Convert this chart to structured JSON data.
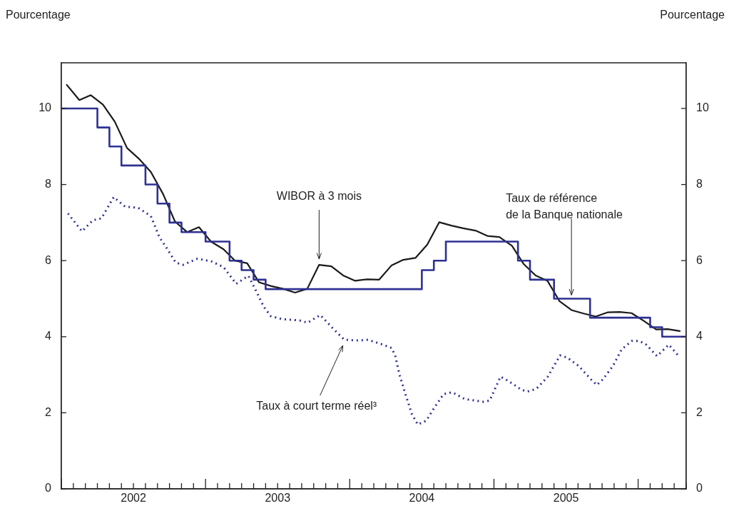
{
  "chart_data": {
    "type": "line",
    "ylabel": "Pourcentage",
    "y2label": "Pourcentage",
    "legend": false,
    "grid": false,
    "marker": "none",
    "xlim": [
      "2002-01-01",
      "2006-05-01"
    ],
    "ylim": [
      0,
      11.2
    ],
    "yticks": [
      0,
      2,
      4,
      6,
      8,
      10
    ],
    "y2lim": [
      0,
      11.2
    ],
    "y2ticks": [
      0,
      2,
      4,
      6,
      8,
      10
    ],
    "xticks": [
      {
        "value": "2002-01-01",
        "label": null
      },
      {
        "value": "2002-02-01",
        "label": null
      },
      {
        "value": "2002-03-01",
        "label": null
      },
      {
        "value": "2002-04-01",
        "label": null
      },
      {
        "value": "2002-05-01",
        "label": null
      },
      {
        "value": "2002-06-01",
        "label": null
      },
      {
        "value": "2002-07-01",
        "label": "2002"
      },
      {
        "value": "2002-08-01",
        "label": null
      },
      {
        "value": "2002-09-01",
        "label": null
      },
      {
        "value": "2002-10-01",
        "label": null
      },
      {
        "value": "2002-11-01",
        "label": null
      },
      {
        "value": "2002-12-01",
        "label": null
      },
      {
        "value": "2003-01-01",
        "label": null
      },
      {
        "value": "2003-02-01",
        "label": null
      },
      {
        "value": "2003-03-01",
        "label": null
      },
      {
        "value": "2003-04-01",
        "label": null
      },
      {
        "value": "2003-05-01",
        "label": null
      },
      {
        "value": "2003-06-01",
        "label": null
      },
      {
        "value": "2003-07-01",
        "label": "2003"
      },
      {
        "value": "2003-08-01",
        "label": null
      },
      {
        "value": "2003-09-01",
        "label": null
      },
      {
        "value": "2003-10-01",
        "label": null
      },
      {
        "value": "2003-11-01",
        "label": null
      },
      {
        "value": "2003-12-01",
        "label": null
      },
      {
        "value": "2004-01-01",
        "label": null
      },
      {
        "value": "2004-02-01",
        "label": null
      },
      {
        "value": "2004-03-01",
        "label": null
      },
      {
        "value": "2004-04-01",
        "label": null
      },
      {
        "value": "2004-05-01",
        "label": null
      },
      {
        "value": "2004-06-01",
        "label": null
      },
      {
        "value": "2004-07-01",
        "label": "2004"
      },
      {
        "value": "2004-08-01",
        "label": null
      },
      {
        "value": "2004-09-01",
        "label": null
      },
      {
        "value": "2004-10-01",
        "label": null
      },
      {
        "value": "2004-11-01",
        "label": null
      },
      {
        "value": "2004-12-01",
        "label": null
      },
      {
        "value": "2005-01-01",
        "label": null
      },
      {
        "value": "2005-02-01",
        "label": null
      },
      {
        "value": "2005-03-01",
        "label": null
      },
      {
        "value": "2005-04-01",
        "label": null
      },
      {
        "value": "2005-05-01",
        "label": null
      },
      {
        "value": "2005-06-01",
        "label": null
      },
      {
        "value": "2005-07-01",
        "label": "2005"
      },
      {
        "value": "2005-08-01",
        "label": null
      },
      {
        "value": "2005-09-01",
        "label": null
      },
      {
        "value": "2005-10-01",
        "label": null
      },
      {
        "value": "2005-11-01",
        "label": null
      },
      {
        "value": "2005-12-01",
        "label": null
      },
      {
        "value": "2006-01-01",
        "label": null
      },
      {
        "value": "2006-02-01",
        "label": null
      },
      {
        "value": "2006-03-01",
        "label": null
      },
      {
        "value": "2006-04-01",
        "label": null
      },
      {
        "value": "2006-05-01",
        "label": null
      }
    ],
    "series": [
      {
        "type": "step",
        "color": "#2e3192",
        "x": [
          "2002-01-01",
          "2002-04-01",
          "2002-05-01",
          "2002-06-01",
          "2002-08-01",
          "2002-09-01",
          "2002-10-01",
          "2002-11-01",
          "2003-01-01",
          "2003-03-01",
          "2003-04-01",
          "2003-05-01",
          "2003-06-01",
          "2004-07-01",
          "2004-08-01",
          "2004-09-01",
          "2005-03-01",
          "2005-04-01",
          "2005-06-01",
          "2005-09-01",
          "2006-02-01",
          "2006-03-01",
          "2006-05-01"
        ],
        "values": [
          10.0,
          9.5,
          9.0,
          8.5,
          8.0,
          7.5,
          7.0,
          6.75,
          6.5,
          6.0,
          5.75,
          5.5,
          5.25,
          5.75,
          6.0,
          6.5,
          6.0,
          5.5,
          5.0,
          4.5,
          4.25,
          4.0,
          4.0
        ]
      },
      {
        "type": "line",
        "color": "#1a1a1a",
        "x": [
          "2002-01-15",
          "2002-02-15",
          "2002-03-15",
          "2002-04-15",
          "2002-05-15",
          "2002-06-15",
          "2002-07-15",
          "2002-08-15",
          "2002-09-15",
          "2002-10-15",
          "2002-11-15",
          "2002-12-15",
          "2003-01-15",
          "2003-02-15",
          "2003-03-15",
          "2003-04-15",
          "2003-05-15",
          "2003-06-15",
          "2003-07-15",
          "2003-08-15",
          "2003-09-15",
          "2003-10-15",
          "2003-11-15",
          "2003-12-15",
          "2004-01-15",
          "2004-02-15",
          "2004-03-15",
          "2004-04-15",
          "2004-05-15",
          "2004-06-15",
          "2004-07-15",
          "2004-08-15",
          "2004-09-15",
          "2004-10-15",
          "2004-11-15",
          "2004-12-15",
          "2005-01-15",
          "2005-02-15",
          "2005-03-15",
          "2005-04-15",
          "2005-05-15",
          "2005-06-15",
          "2005-07-15",
          "2005-08-15",
          "2005-09-15",
          "2005-10-15",
          "2005-11-15",
          "2005-12-15",
          "2006-01-15",
          "2006-02-15",
          "2006-03-15",
          "2006-04-15"
        ],
        "values": [
          10.62,
          10.22,
          10.35,
          10.1,
          9.65,
          8.96,
          8.68,
          8.33,
          7.75,
          7.03,
          6.75,
          6.88,
          6.5,
          6.3,
          6.0,
          5.93,
          5.43,
          5.33,
          5.26,
          5.16,
          5.26,
          5.89,
          5.85,
          5.61,
          5.47,
          5.51,
          5.5,
          5.87,
          6.02,
          6.07,
          6.42,
          7.01,
          6.92,
          6.85,
          6.79,
          6.65,
          6.62,
          6.39,
          5.92,
          5.61,
          5.47,
          4.93,
          4.7,
          4.61,
          4.53,
          4.64,
          4.65,
          4.62,
          4.42,
          4.19,
          4.2,
          4.15
        ]
      },
      {
        "type": "line",
        "line_style": "dotted",
        "color": "#2e3192",
        "x": [
          "2002-01-18",
          "2002-02-21",
          "2002-03-20",
          "2002-04-11",
          "2002-05-12",
          "2002-06-10",
          "2002-07-13",
          "2002-08-15",
          "2002-09-06",
          "2002-09-24",
          "2002-10-17",
          "2002-11-05",
          "2002-12-11",
          "2003-01-16",
          "2003-02-15",
          "2003-03-18",
          "2003-04-18",
          "2003-05-09",
          "2003-05-27",
          "2003-06-14",
          "2003-07-14",
          "2003-08-25",
          "2003-09-16",
          "2003-10-18",
          "2003-11-18",
          "2003-12-18",
          "2004-01-26",
          "2004-02-16",
          "2004-03-25",
          "2004-04-16",
          "2004-04-25",
          "2004-05-06",
          "2004-05-21",
          "2004-06-06",
          "2004-06-21",
          "2004-07-12",
          "2004-08-02",
          "2004-08-26",
          "2004-09-17",
          "2004-10-19",
          "2004-12-04",
          "2004-12-21",
          "2005-01-18",
          "2005-02-06",
          "2005-03-11",
          "2005-03-26",
          "2005-04-17",
          "2005-05-16",
          "2005-06-16",
          "2005-07-04",
          "2005-08-03",
          "2005-09-03",
          "2005-09-18",
          "2005-10-03",
          "2005-10-29",
          "2005-11-20",
          "2005-12-16",
          "2006-01-04",
          "2006-01-22",
          "2006-02-17",
          "2006-03-18",
          "2006-04-15"
        ],
        "values": [
          7.24,
          6.77,
          7.06,
          7.11,
          7.67,
          7.42,
          7.39,
          7.17,
          6.61,
          6.33,
          5.95,
          5.89,
          6.05,
          5.98,
          5.83,
          5.39,
          5.6,
          5.17,
          4.79,
          4.54,
          4.46,
          4.43,
          4.37,
          4.57,
          4.23,
          3.92,
          3.9,
          3.92,
          3.79,
          3.7,
          3.48,
          2.98,
          2.48,
          1.97,
          1.69,
          1.79,
          2.13,
          2.49,
          2.54,
          2.36,
          2.29,
          2.32,
          2.95,
          2.84,
          2.6,
          2.56,
          2.63,
          2.95,
          3.51,
          3.45,
          3.23,
          2.88,
          2.73,
          2.88,
          3.23,
          3.67,
          3.89,
          3.89,
          3.79,
          3.49,
          3.79,
          3.46
        ]
      }
    ],
    "annotations": [
      {
        "text": "WIBOR à 3 mois",
        "x": "2003-10-15",
        "y": 5.89
      },
      {
        "text": "Taux de référence\nde la Banque nationale",
        "x": "2005-07-15",
        "y": 5.0
      },
      {
        "text": "Taux à court terme réel³",
        "x": "2003-12-18",
        "y": 3.92
      }
    ]
  }
}
